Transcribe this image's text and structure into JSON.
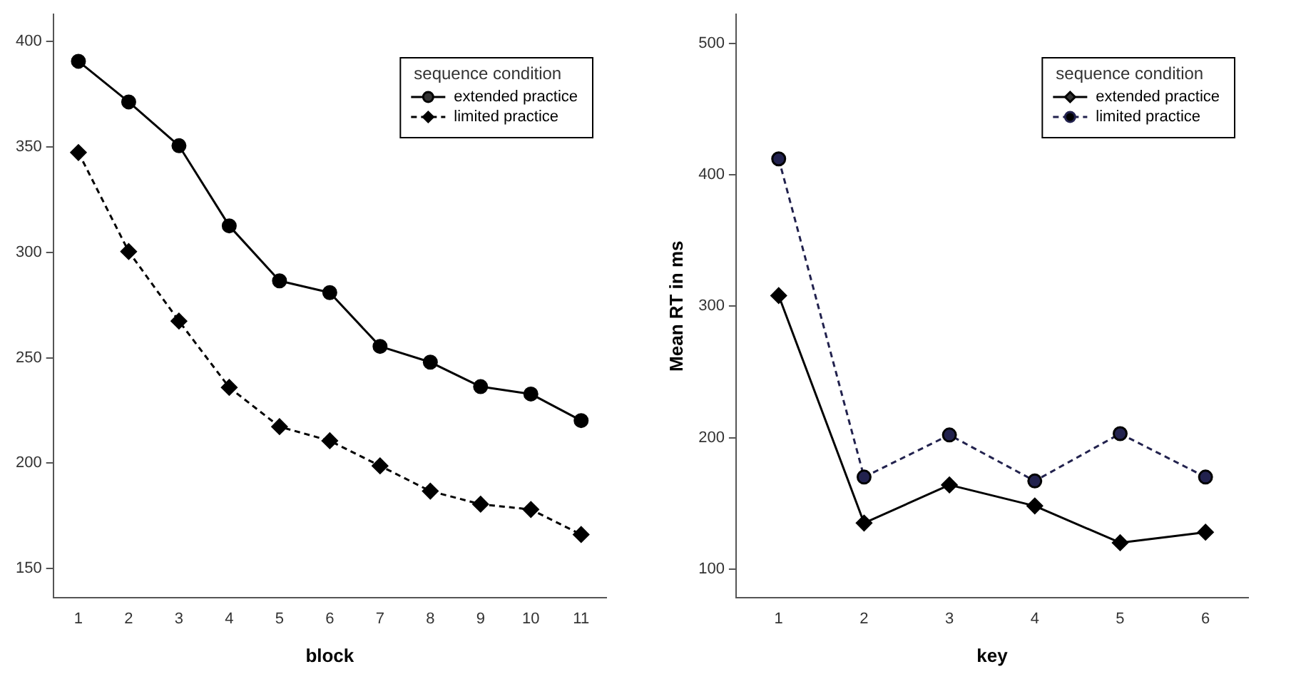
{
  "chart_data": [
    {
      "type": "line",
      "xlabel": "block",
      "categories": [
        "1",
        "2",
        "3",
        "4",
        "5",
        "6",
        "7",
        "8",
        "9",
        "10",
        "11"
      ],
      "series": [
        {
          "name": "extended practice",
          "color": "#000000",
          "marker": "circle",
          "line_style": "solid",
          "values": [
            390.7,
            371.4,
            350.6,
            312.6,
            286.5,
            280.9,
            255.4,
            247.9,
            236.3,
            232.8,
            220.2
          ]
        },
        {
          "name": "limited practice",
          "color": "#000000",
          "marker": "diamond",
          "line_style": "dashed",
          "values": [
            347.4,
            300.4,
            267.4,
            235.9,
            217.3,
            210.6,
            198.7,
            186.7,
            180.5,
            178.0,
            166.1
          ]
        }
      ],
      "ylim": [
        136,
        413
      ],
      "yticks": [
        150,
        200,
        250,
        300,
        350,
        400
      ],
      "grid": false,
      "legend": "top right",
      "legend_title": "sequence condition"
    },
    {
      "type": "line",
      "xlabel": "key",
      "ylabel": "Mean RT in ms",
      "categories": [
        "1",
        "2",
        "3",
        "4",
        "5",
        "6"
      ],
      "series": [
        {
          "name": "extended practice",
          "color": "#000000",
          "marker": "diamond",
          "line_style": "solid",
          "values": [
            308,
            135,
            164,
            148,
            120,
            128
          ]
        },
        {
          "name": "limited practice",
          "color": "#22224e",
          "marker": "circle",
          "line_style": "dashed",
          "values": [
            412,
            170,
            202,
            167,
            203,
            170
          ]
        }
      ],
      "ylim": [
        78,
        522
      ],
      "yticks": [
        100,
        200,
        300,
        400,
        500
      ],
      "grid": false,
      "legend": "top right",
      "legend_title": "sequence condition"
    }
  ]
}
